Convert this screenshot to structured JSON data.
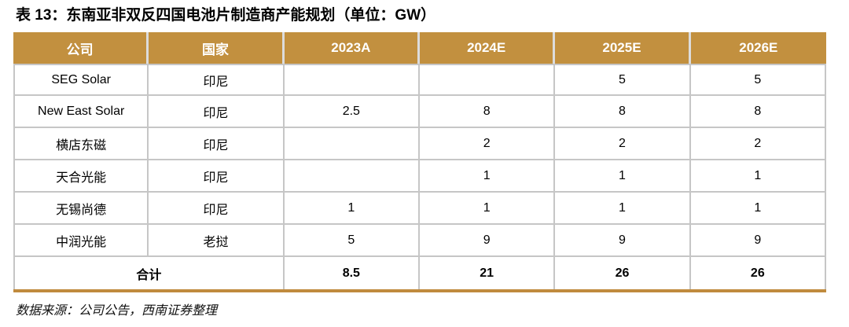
{
  "title": "表 13：东南亚非双反四国电池片制造商产能规划（单位：GW）",
  "colors": {
    "header_bg": "#C2903F",
    "header_text": "#FFFFFF",
    "grid_line": "#C6C6C6",
    "accent_bottom_rule": "#C08B3E",
    "body_text": "#000000"
  },
  "table": {
    "columns": [
      "公司",
      "国家",
      "2023A",
      "2024E",
      "2025E",
      "2026E"
    ],
    "rows": [
      {
        "cells": [
          "SEG Solar",
          "印尼",
          "",
          "",
          "5",
          "5"
        ]
      },
      {
        "cells": [
          "New East Solar",
          "印尼",
          "2.5",
          "8",
          "8",
          "8"
        ]
      },
      {
        "cells": [
          "横店东磁",
          "印尼",
          "",
          "2",
          "2",
          "2"
        ]
      },
      {
        "cells": [
          "天合光能",
          "印尼",
          "",
          "1",
          "1",
          "1"
        ]
      },
      {
        "cells": [
          "无锡尚德",
          "印尼",
          "1",
          "1",
          "1",
          "1"
        ]
      },
      {
        "cells": [
          "中润光能",
          "老挝",
          "5",
          "9",
          "9",
          "9"
        ]
      }
    ],
    "total": {
      "label": "合计",
      "values": [
        "8.5",
        "21",
        "26",
        "26"
      ]
    }
  },
  "footer": "数据来源：公司公告，西南证券整理"
}
